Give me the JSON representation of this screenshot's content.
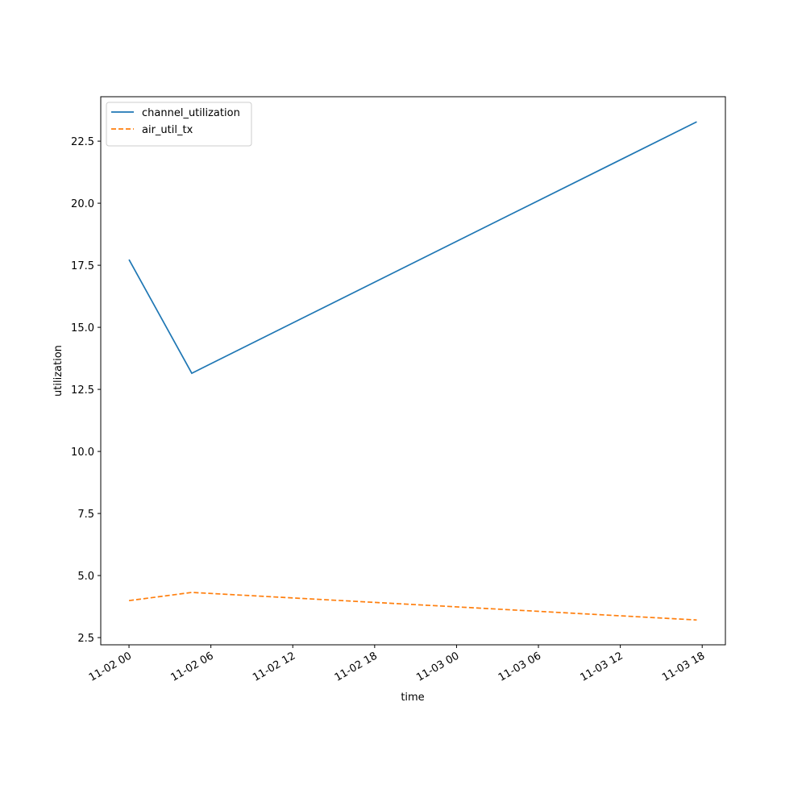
{
  "chart_data": {
    "type": "line",
    "xlabel": "time",
    "ylabel": "utilization",
    "x": [
      0,
      4.6,
      41.6
    ],
    "series": [
      {
        "name": "channel_utilization",
        "color": "#1f77b4",
        "dash": "solid",
        "values": [
          17.73,
          13.15,
          23.28
        ]
      },
      {
        "name": "air_util_tx",
        "color": "#ff7f0e",
        "dash": "dashed",
        "values": [
          3.99,
          4.32,
          3.21
        ]
      }
    ],
    "xlim": [
      -2.07,
      43.7
    ],
    "xticks": [
      {
        "value": 0,
        "label": "11-02 00"
      },
      {
        "value": 6,
        "label": "11-02 06"
      },
      {
        "value": 12,
        "label": "11-02 12"
      },
      {
        "value": 18,
        "label": "11-02 18"
      },
      {
        "value": 24,
        "label": "11-03 00"
      },
      {
        "value": 30,
        "label": "11-03 06"
      },
      {
        "value": 36,
        "label": "11-03 12"
      },
      {
        "value": 42,
        "label": "11-03 18"
      }
    ],
    "ylim": [
      2.21,
      24.29
    ],
    "yticks": [
      2.5,
      {
        "value": 5,
        "label": "5.0"
      },
      7.5,
      {
        "value": 10,
        "label": "10.0"
      },
      12.5,
      {
        "value": 15,
        "label": "15.0"
      },
      17.5,
      {
        "value": 20,
        "label": "20.0"
      },
      22.5
    ],
    "legend": "upper left"
  }
}
